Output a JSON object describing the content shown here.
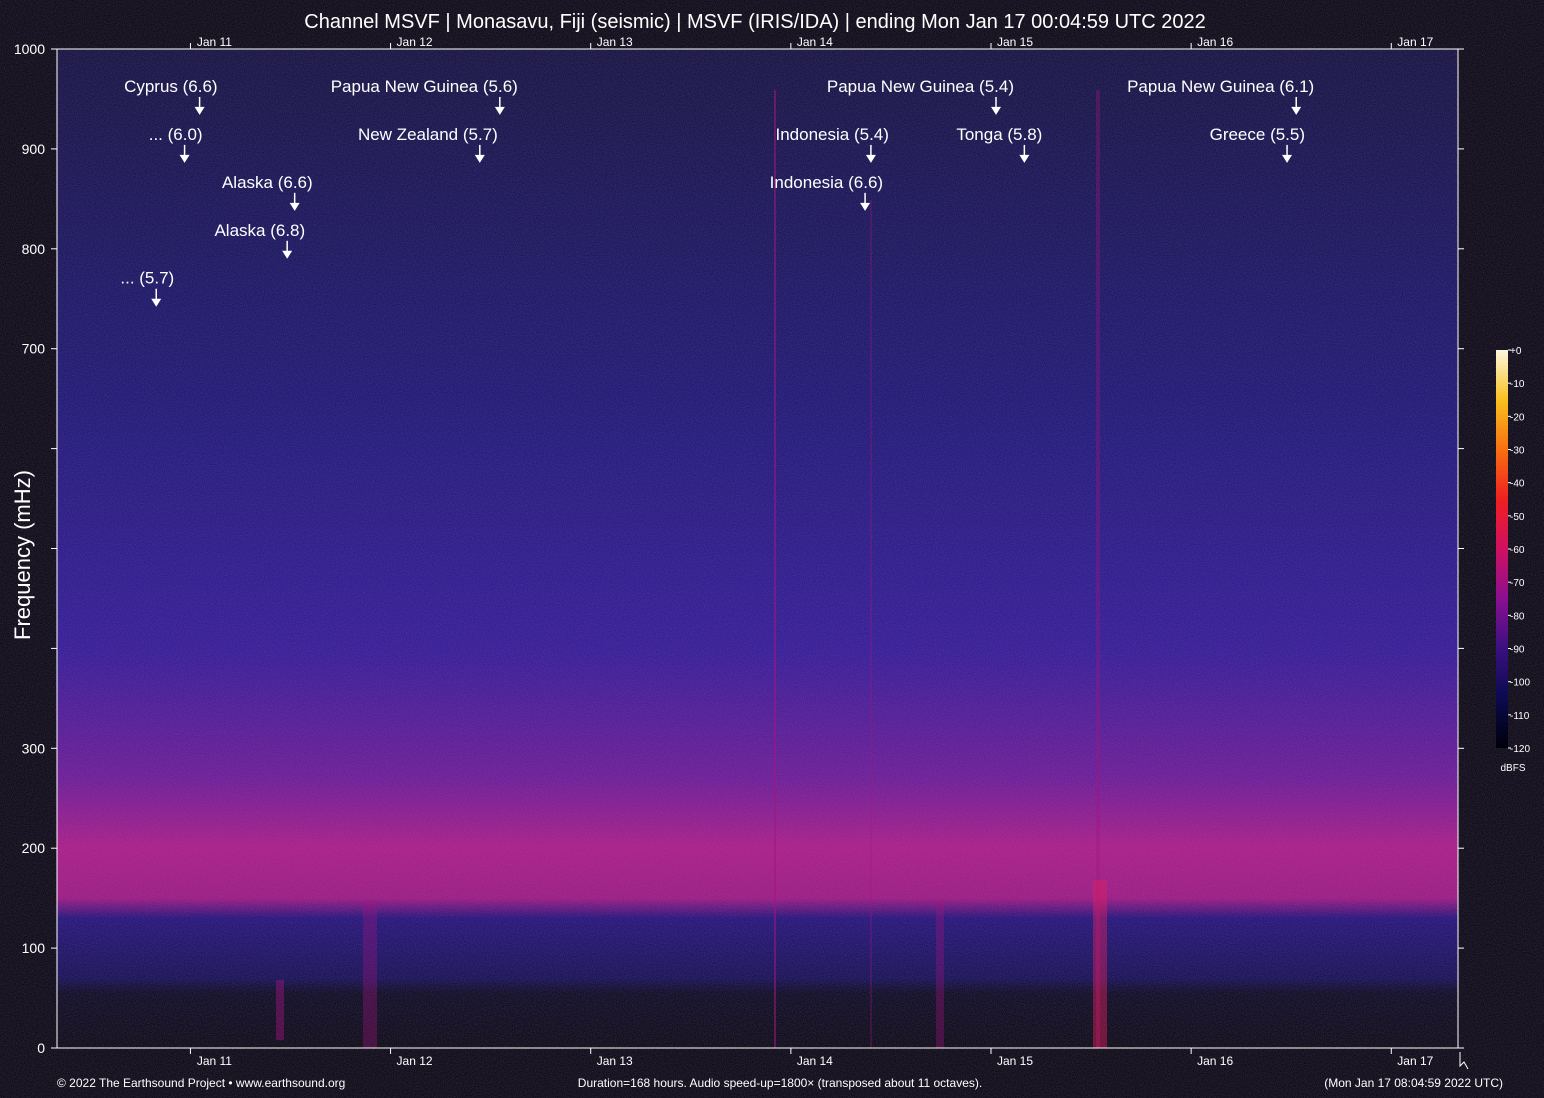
{
  "chart_data": {
    "type": "spectrogram",
    "title": "Channel MSVF | Monasavu, Fiji (seismic) | MSVF (IRIS/IDA) | ending Mon Jan 17 00:04:59 UTC 2022",
    "y_label": "Frequency (mHz)",
    "ylim": [
      0,
      1000
    ],
    "yticks": [
      0,
      100,
      200,
      300,
      {
        "value": 400,
        "label": null
      },
      {
        "value": 500,
        "label": null
      },
      {
        "value": 600,
        "label": null
      },
      700,
      800,
      900,
      1000
    ],
    "xlim": [
      0,
      168
    ],
    "xticks": [
      {
        "value": 16,
        "label": "Jan 11"
      },
      {
        "value": 40,
        "label": "Jan 12"
      },
      {
        "value": 64,
        "label": "Jan 13"
      },
      {
        "value": 88,
        "label": "Jan 14"
      },
      {
        "value": 112,
        "label": "Jan 15"
      },
      {
        "value": 136,
        "label": "Jan 16"
      },
      {
        "value": 160,
        "label": "Jan 17"
      }
    ],
    "annotations": [
      {
        "text": "Cyprus (6.6)",
        "x": 17.1,
        "y": 934
      },
      {
        "text": "... (6.0)",
        "x": 15.3,
        "y": 886
      },
      {
        "text": "Alaska (6.6)",
        "x": 28.5,
        "y": 838
      },
      {
        "text": "Alaska (6.8)",
        "x": 27.6,
        "y": 790
      },
      {
        "text": "... (5.7)",
        "x": 11.9,
        "y": 742
      },
      {
        "text": "Papua New Guinea (5.6)",
        "x": 53.1,
        "y": 934
      },
      {
        "text": "New Zealand (5.7)",
        "x": 50.7,
        "y": 886
      },
      {
        "text": "Papua New Guinea (5.4)",
        "x": 112.6,
        "y": 934
      },
      {
        "text": "Indonesia (5.4)",
        "x": 97.6,
        "y": 886
      },
      {
        "text": "Indonesia (6.6)",
        "x": 96.9,
        "y": 838
      },
      {
        "text": "Tonga (5.8)",
        "x": 116.0,
        "y": 886
      },
      {
        "text": "Papua New Guinea (6.1)",
        "x": 148.6,
        "y": 934
      },
      {
        "text": "Greece (5.5)",
        "x": 147.5,
        "y": 886
      }
    ],
    "colorbar": {
      "label": "dBFS",
      "lim": [
        -120,
        0
      ],
      "ticks": [
        {
          "value": 0,
          "label": "+0"
        },
        -10,
        -20,
        -30,
        -40,
        -50,
        -60,
        -70,
        -80,
        -90,
        -100,
        -110,
        -120
      ],
      "colors": [
        "#000008",
        "#0a0a50",
        "#3a1080",
        "#8a1090",
        "#d01060",
        "#f02020",
        "#f87010",
        "#f8c020",
        "#fff8e0"
      ]
    },
    "footer_left": "© 2022 The Earthsound Project • www.earthsound.org",
    "footer_center": "Duration=168 hours. Audio speed-up=1800× (transposed about 11 octaves).",
    "footer_right": "(Mon Jan 17 08:04:59 2022 UTC)"
  }
}
